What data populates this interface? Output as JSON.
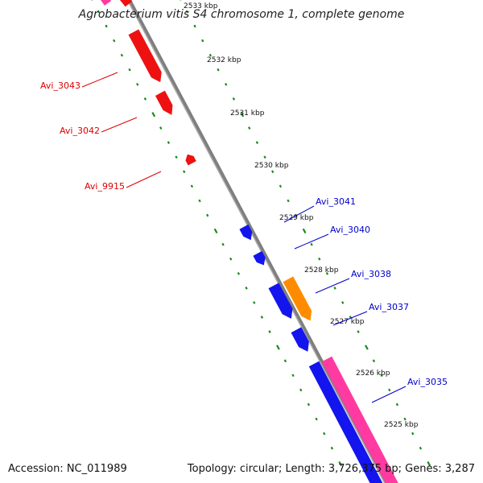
{
  "title": "Agrobacterium vitis S4 chromosome 1, complete genome",
  "footer": {
    "accession": "Accession: NC_011989",
    "topology": "Topology: circular; Length: 3,726,375 bp; Genes: 3,287"
  },
  "colors": {
    "backbone": "#7f7f7f",
    "tick": "#1a8a1a",
    "forward_cds": "#ee1111",
    "reverse_cds": "#1414ee",
    "rrna": "#ff8c00",
    "gc_skew": "#ff3aa0",
    "forward_label": "#dd0000",
    "reverse_label": "#0000cc"
  },
  "scale": {
    "unit": "kbp",
    "tick_labels": [
      "2533 kbp",
      "2532 kbp",
      "2531 kbp",
      "2530 kbp",
      "2529 kbp",
      "2528 kbp",
      "2527 kbp",
      "2526 kbp",
      "2525 kbp"
    ]
  },
  "genes": [
    {
      "label": "Avi_3043",
      "strand": "forward",
      "type": "CDS"
    },
    {
      "label": "Avi_3042",
      "strand": "forward",
      "type": "CDS"
    },
    {
      "label": "Avi_9915",
      "strand": "forward",
      "type": "CDS"
    },
    {
      "label": "Avi_3041",
      "strand": "reverse",
      "type": "CDS"
    },
    {
      "label": "Avi_3040",
      "strand": "reverse",
      "type": "CDS"
    },
    {
      "label": "Avi_3038",
      "strand": "reverse",
      "type": "rRNA"
    },
    {
      "label": "Avi_3037",
      "strand": "reverse",
      "type": "CDS"
    },
    {
      "label": "Avi_3035",
      "strand": "reverse",
      "type": "CDS"
    }
  ]
}
